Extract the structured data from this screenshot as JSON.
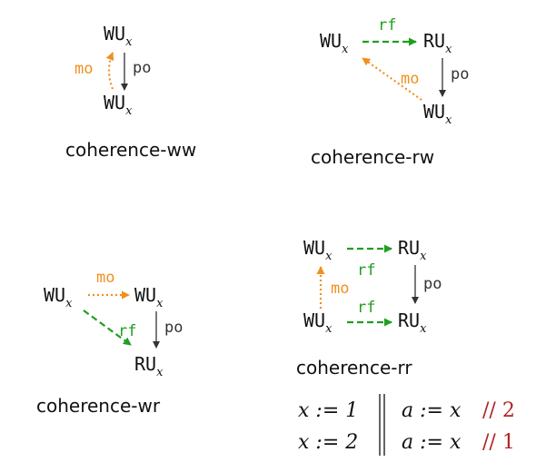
{
  "colors": {
    "po": "#333333",
    "rf": "#1f9e1f",
    "mo": "#f0901e",
    "comment": "#b22222"
  },
  "node_label": {
    "write": "WU",
    "read": "RU",
    "subscript": "x"
  },
  "edge_labels": {
    "po": "po",
    "rf": "rf",
    "mo": "mo"
  },
  "captions": {
    "ww": "coherence-ww",
    "rw": "coherence-rw",
    "wr": "coherence-wr",
    "rr": "coherence-rr"
  },
  "program": {
    "thread1": [
      "x := 1",
      "x := 2"
    ],
    "thread2": [
      "a := x",
      "a := x"
    ],
    "comments": [
      "// 2",
      "// 1"
    ]
  }
}
